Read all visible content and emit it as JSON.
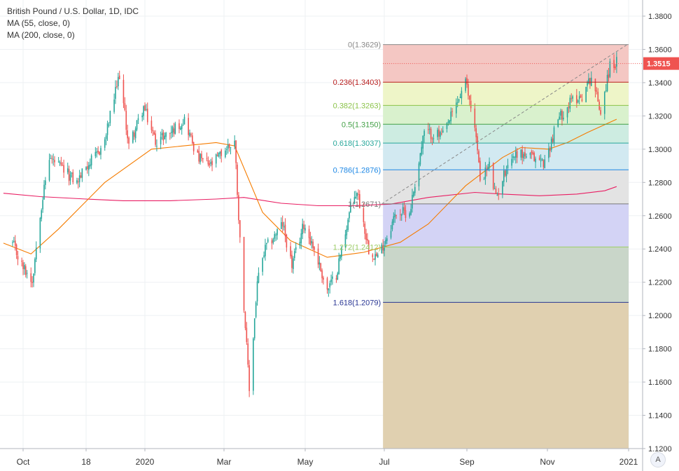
{
  "header": {
    "symbol": "British Pound / U.S. Dollar, 1D, IDC",
    "ma55": "MA (55, close, 0)",
    "ma200": "MA (200, close, 0)"
  },
  "price_label": "1.3515",
  "corner_button": "A",
  "colors": {
    "up": "#26a69a",
    "down": "#ef5350",
    "ma55": "#f57c00",
    "ma200": "#e91e63"
  },
  "chart_data": {
    "type": "candlestick",
    "y_axis": {
      "range": [
        1.12,
        1.39
      ],
      "ticks": [
        "1.3800",
        "1.3600",
        "1.3400",
        "1.3200",
        "1.3000",
        "1.2800",
        "1.2600",
        "1.2400",
        "1.2200",
        "1.2000",
        "1.1800",
        "1.1600",
        "1.1400",
        "1.1200"
      ]
    },
    "x_axis": {
      "ticks": [
        "Oct",
        "18",
        "2020",
        "Mar",
        "May",
        "Jul",
        "Sep",
        "Nov",
        "2021"
      ]
    },
    "fib_levels": [
      {
        "label": "0(1.3629)",
        "value": 1.3629,
        "line": "#888888",
        "fill": "#f4c7c3"
      },
      {
        "label": "0.236(1.3403)",
        "value": 1.3403,
        "line": "#b71c1c",
        "fill": "#eef5c8"
      },
      {
        "label": "0.382(1.3263)",
        "value": 1.3263,
        "line": "#8bc34a",
        "fill": "#d9f1cd"
      },
      {
        "label": "0.5(1.3150)",
        "value": 1.315,
        "line": "#43a047",
        "fill": "#cdece1"
      },
      {
        "label": "0.618(1.3037)",
        "value": 1.3037,
        "line": "#26a69a",
        "fill": "#d2e9f1"
      },
      {
        "label": "0.786(1.2876)",
        "value": 1.2876,
        "line": "#1e88e5",
        "fill": "#e3e3e3"
      },
      {
        "label": "1(1.2671)",
        "value": 1.2671,
        "line": "#777777",
        "fill": "#d3d3f5"
      },
      {
        "label": "1.272(1.2412)",
        "value": 1.2412,
        "line": "#9ccc65",
        "fill": "#c9d6c9"
      },
      {
        "label": "1.618(1.2079)",
        "value": 1.2079,
        "line": "#283593",
        "fill": "#e0d0b0"
      }
    ],
    "current_price": 1.3515,
    "anchors": [
      [
        "2019-09-23",
        1.243
      ],
      [
        "2019-09-30",
        1.23
      ],
      [
        "2019-10-08",
        1.221
      ],
      [
        "2019-10-14",
        1.262
      ],
      [
        "2019-10-21",
        1.295
      ],
      [
        "2019-10-28",
        1.29
      ],
      [
        "2019-11-04",
        1.285
      ],
      [
        "2019-11-11",
        1.28
      ],
      [
        "2019-11-18",
        1.29
      ],
      [
        "2019-11-25",
        1.295
      ],
      [
        "2019-12-02",
        1.305
      ],
      [
        "2019-12-06",
        1.32
      ],
      [
        "2019-12-13",
        1.345
      ],
      [
        "2019-12-20",
        1.302
      ],
      [
        "2019-12-31",
        1.325
      ],
      [
        "2020-01-09",
        1.305
      ],
      [
        "2020-01-20",
        1.31
      ],
      [
        "2020-01-31",
        1.318
      ],
      [
        "2020-02-10",
        1.295
      ],
      [
        "2020-02-20",
        1.29
      ],
      [
        "2020-03-02",
        1.3
      ],
      [
        "2020-03-09",
        1.305
      ],
      [
        "2020-03-13",
        1.245
      ],
      [
        "2020-03-20",
        1.155
      ],
      [
        "2020-03-26",
        1.22
      ],
      [
        "2020-04-01",
        1.24
      ],
      [
        "2020-04-14",
        1.255
      ],
      [
        "2020-04-21",
        1.23
      ],
      [
        "2020-04-30",
        1.255
      ],
      [
        "2020-05-08",
        1.24
      ],
      [
        "2020-05-18",
        1.215
      ],
      [
        "2020-05-25",
        1.225
      ],
      [
        "2020-06-05",
        1.265
      ],
      [
        "2020-06-10",
        1.275
      ],
      [
        "2020-06-19",
        1.24
      ],
      [
        "2020-06-26",
        1.235
      ],
      [
        "2020-07-03",
        1.248
      ],
      [
        "2020-07-10",
        1.262
      ],
      [
        "2020-07-20",
        1.262
      ],
      [
        "2020-07-31",
        1.31
      ],
      [
        "2020-08-14",
        1.308
      ],
      [
        "2020-08-31",
        1.34
      ],
      [
        "2020-09-07",
        1.315
      ],
      [
        "2020-09-11",
        1.282
      ],
      [
        "2020-09-18",
        1.29
      ],
      [
        "2020-09-23",
        1.27
      ],
      [
        "2020-10-02",
        1.292
      ],
      [
        "2020-10-09",
        1.298
      ],
      [
        "2020-10-20",
        1.295
      ],
      [
        "2020-10-30",
        1.292
      ],
      [
        "2020-11-09",
        1.318
      ],
      [
        "2020-11-20",
        1.33
      ],
      [
        "2020-11-27",
        1.332
      ],
      [
        "2020-12-04",
        1.344
      ],
      [
        "2020-12-11",
        1.323
      ],
      [
        "2020-12-18",
        1.35
      ],
      [
        "2020-12-23",
        1.352
      ]
    ],
    "ma55_points": [
      [
        "2019-09-16",
        1.2435
      ],
      [
        "2019-10-07",
        1.237
      ],
      [
        "2019-10-28",
        1.252
      ],
      [
        "2019-12-02",
        1.28
      ],
      [
        "2020-01-06",
        1.3
      ],
      [
        "2020-02-24",
        1.304
      ],
      [
        "2020-03-09",
        1.302
      ],
      [
        "2020-03-30",
        1.262
      ],
      [
        "2020-04-20",
        1.245
      ],
      [
        "2020-05-18",
        1.235
      ],
      [
        "2020-06-15",
        1.238
      ],
      [
        "2020-07-13",
        1.244
      ],
      [
        "2020-08-03",
        1.255
      ],
      [
        "2020-08-31",
        1.278
      ],
      [
        "2020-09-28",
        1.295
      ],
      [
        "2020-10-12",
        1.301
      ],
      [
        "2020-11-02",
        1.3
      ],
      [
        "2020-11-16",
        1.304
      ],
      [
        "2020-12-01",
        1.31
      ],
      [
        "2020-12-23",
        1.318
      ]
    ],
    "ma200_points": [
      [
        "2019-09-16",
        1.2735
      ],
      [
        "2019-10-14",
        1.2715
      ],
      [
        "2019-11-18",
        1.27
      ],
      [
        "2019-12-16",
        1.269
      ],
      [
        "2020-01-20",
        1.269
      ],
      [
        "2020-02-24",
        1.27
      ],
      [
        "2020-03-16",
        1.271
      ],
      [
        "2020-04-13",
        1.2675
      ],
      [
        "2020-05-11",
        1.266
      ],
      [
        "2020-06-08",
        1.266
      ],
      [
        "2020-07-06",
        1.267
      ],
      [
        "2020-08-03",
        1.271
      ],
      [
        "2020-09-07",
        1.274
      ],
      [
        "2020-09-28",
        1.273
      ],
      [
        "2020-10-26",
        1.272
      ],
      [
        "2020-11-23",
        1.273
      ],
      [
        "2020-12-14",
        1.275
      ],
      [
        "2020-12-23",
        1.2775
      ]
    ],
    "trend_line": [
      [
        "2020-06-29",
        1.2671
      ],
      [
        "2020-12-31",
        1.3629
      ]
    ]
  }
}
